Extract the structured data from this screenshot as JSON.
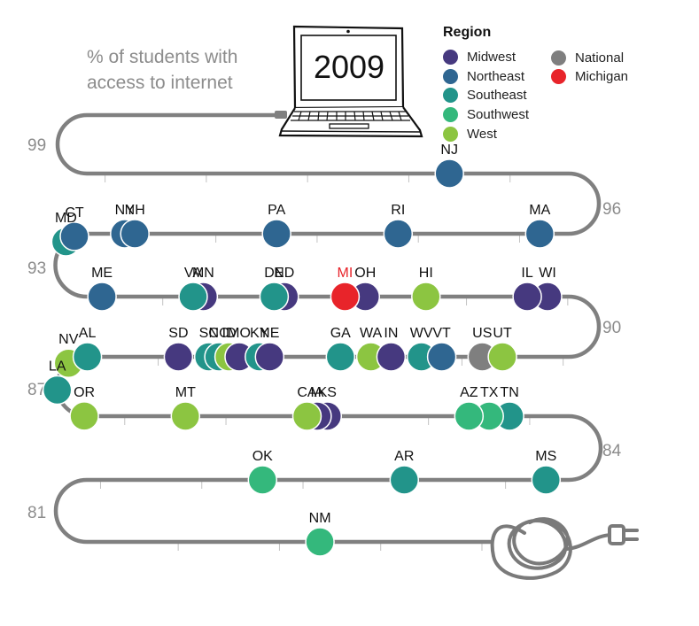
{
  "subtitle_lines": [
    "% of students with",
    "access to internet"
  ],
  "legend": {
    "title": "Region",
    "items": [
      {
        "label": "Midwest",
        "color": "#46397f"
      },
      {
        "label": "Northeast",
        "color": "#2f6691"
      },
      {
        "label": "Southeast",
        "color": "#22948a"
      },
      {
        "label": "Southwest",
        "color": "#34b87c"
      },
      {
        "label": "West",
        "color": "#8cc541"
      },
      {
        "label": "National",
        "color": "#7f7f7f"
      },
      {
        "label": "Michigan",
        "color": "#e8242a"
      }
    ]
  },
  "icons": [
    "laptop-icon",
    "power-cord-icon"
  ],
  "chart_data": {
    "type": "scatter",
    "title": "2009",
    "ylim": [
      79.5,
      99
    ],
    "y_ticks": [
      99,
      96,
      93,
      90,
      87,
      84,
      81
    ],
    "points": [
      {
        "label": "NJ",
        "value": 96.8,
        "region": "Northeast"
      },
      {
        "label": "MA",
        "value": 95.6,
        "region": "Northeast"
      },
      {
        "label": "RI",
        "value": 94.9,
        "region": "Northeast"
      },
      {
        "label": "PA",
        "value": 94.3,
        "region": "Northeast"
      },
      {
        "label": "NH",
        "value": 93.6,
        "region": "Northeast"
      },
      {
        "label": "NY",
        "value": 93.55,
        "region": "Northeast"
      },
      {
        "label": "CT",
        "value": 93.3,
        "region": "Northeast"
      },
      {
        "label": "MD",
        "value": 93.25,
        "region": "Southeast"
      },
      {
        "label": "ME",
        "value": 92.8,
        "region": "Northeast"
      },
      {
        "label": "VA",
        "value": 92.35,
        "region": "Southeast"
      },
      {
        "label": "MN",
        "value": 92.3,
        "region": "Midwest"
      },
      {
        "label": "DE",
        "value": 91.95,
        "region": "Southeast"
      },
      {
        "label": "ND",
        "value": 91.9,
        "region": "Midwest"
      },
      {
        "label": "MI",
        "value": 91.6,
        "region": "Michigan"
      },
      {
        "label": "OH",
        "value": 91.5,
        "region": "Midwest"
      },
      {
        "label": "HI",
        "value": 91.2,
        "region": "West"
      },
      {
        "label": "IL",
        "value": 90.7,
        "region": "Midwest"
      },
      {
        "label": "WI",
        "value": 90.6,
        "region": "Midwest"
      },
      {
        "label": "UT",
        "value": 89.7,
        "region": "West"
      },
      {
        "label": "US",
        "value": 89.6,
        "region": "National"
      },
      {
        "label": "VT",
        "value": 89.4,
        "region": "Northeast"
      },
      {
        "label": "WV",
        "value": 89.3,
        "region": "Southeast"
      },
      {
        "label": "IN",
        "value": 89.15,
        "region": "Midwest"
      },
      {
        "label": "WA",
        "value": 89.05,
        "region": "West"
      },
      {
        "label": "GA",
        "value": 88.9,
        "region": "Southeast"
      },
      {
        "label": "NE",
        "value": 88.55,
        "region": "Midwest"
      },
      {
        "label": "KY",
        "value": 88.5,
        "region": "Southeast"
      },
      {
        "label": "MO",
        "value": 88.4,
        "region": "Midwest"
      },
      {
        "label": "ID",
        "value": 88.35,
        "region": "West"
      },
      {
        "label": "NC",
        "value": 88.3,
        "region": "Southeast"
      },
      {
        "label": "SC",
        "value": 88.25,
        "region": "Southeast"
      },
      {
        "label": "SD",
        "value": 88.1,
        "region": "Midwest"
      },
      {
        "label": "AL",
        "value": 87.65,
        "region": "Southeast"
      },
      {
        "label": "NV",
        "value": 87.55,
        "region": "West"
      },
      {
        "label": "LA",
        "value": 87.4,
        "region": "Southeast"
      },
      {
        "label": "OR",
        "value": 87.2,
        "region": "West"
      },
      {
        "label": "MT",
        "value": 86.7,
        "region": "West"
      },
      {
        "label": "KS",
        "value": 86.0,
        "region": "Midwest"
      },
      {
        "label": "CA",
        "value": 86.1,
        "region": "West"
      },
      {
        "label": "IA",
        "value": 86.05,
        "region": "Midwest"
      },
      {
        "label": "TN",
        "value": 85.1,
        "region": "Southeast"
      },
      {
        "label": "TX",
        "value": 85.2,
        "region": "Southwest"
      },
      {
        "label": "AZ",
        "value": 85.3,
        "region": "Southwest"
      },
      {
        "label": "MS",
        "value": 84.2,
        "region": "Southeast"
      },
      {
        "label": "AR",
        "value": 83.5,
        "region": "Southeast"
      },
      {
        "label": "OK",
        "value": 82.8,
        "region": "Southwest"
      },
      {
        "label": "NM",
        "value": 80.3,
        "region": "Southwest"
      }
    ]
  }
}
